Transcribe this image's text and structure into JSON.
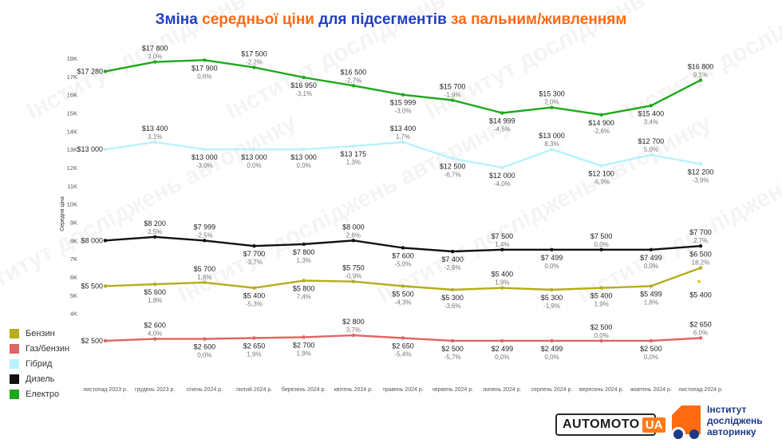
{
  "title": {
    "parts": [
      {
        "text": "Зміна ",
        "color": "#1f3fbf"
      },
      {
        "text": "середньої ціни",
        "color": "#ff6a13"
      },
      {
        "text": " для підсегментів ",
        "color": "#1f3fbf"
      },
      {
        "text": "за пальним/живленням",
        "color": "#ff6a13"
      }
    ]
  },
  "watermark": "Інститут досліджень авторинку",
  "logos": {
    "automoto_main": "AUTOMOTO",
    "automoto_suffix": "UA",
    "institute_lines": [
      "Інститут",
      "досліджень",
      "авторинку"
    ]
  },
  "chart_data": {
    "type": "line",
    "ylabel": "Середня ціна",
    "ylim": [
      0,
      18000
    ],
    "yticks": [
      4000,
      5000,
      6000,
      7000,
      8000,
      9000,
      10000,
      11000,
      12000,
      13000,
      14000,
      15000,
      16000,
      17000,
      18000
    ],
    "ytick_labels": [
      "4K",
      "5K",
      "6K",
      "7K",
      "8K",
      "9K",
      "10K",
      "11K",
      "12K",
      "13K",
      "14K",
      "15K",
      "16K",
      "17K",
      "18K"
    ],
    "categories": [
      "листопад 2023 р.",
      "грудень 2023 р.",
      "січень 2024 р.",
      "лютий 2024 р.",
      "березень 2024 р.",
      "квітень 2024 р.",
      "травень 2024 р.",
      "червень 2024 р.",
      "липень 2024 р.",
      "серпень 2024 р.",
      "вересень 2024 р.",
      "жовтень 2024 р.",
      "листопад 2024 р."
    ],
    "legend_position": "left",
    "series": [
      {
        "name": "Бензин",
        "color": "#b5ad1a",
        "values": [
          5500,
          5600,
          5700,
          5400,
          5800,
          5750,
          5500,
          5300,
          5400,
          5300,
          5400,
          5499,
          6500
        ],
        "value_labels": [
          "$5 500",
          "$5 600",
          "$5 700",
          "$5 400",
          "$5 800",
          "$5 750",
          "$5 500",
          "$5 300",
          "$5 400",
          "$5 300",
          "$5 400",
          "$5 499",
          "$6 500"
        ],
        "change_labels": [
          "",
          "1,8%",
          "1,8%",
          "-5,3%",
          "7,4%",
          "-0,9%",
          "-4,3%",
          "-3,6%",
          "1,9%",
          "-1,9%",
          "1,9%",
          "1,8%",
          "18,2%"
        ],
        "label_side": [
          "left",
          "below",
          "above",
          "below",
          "below",
          "above",
          "below",
          "below",
          "above",
          "below",
          "below",
          "below",
          "above"
        ]
      },
      {
        "name": "Газ/бензин",
        "color": "#e06464",
        "values": [
          2500,
          2600,
          2600,
          2650,
          2700,
          2800,
          2650,
          2500,
          2499,
          2499,
          2500,
          2500,
          2650
        ],
        "value_labels": [
          "$2 500",
          "$2 600",
          "$2 600",
          "$2 650",
          "$2 700",
          "$2 800",
          "$2 650",
          "$2 500",
          "$2 499",
          "$2 499",
          "$2 500",
          "$2 500",
          "$2 650"
        ],
        "change_labels": [
          "",
          "4,0%",
          "0,0%",
          "1,9%",
          "1,9%",
          "3,7%",
          "-5,4%",
          "-5,7%",
          "0,0%",
          "0,0%",
          "0,0%",
          "0,0%",
          "6,0%"
        ],
        "label_side": [
          "left",
          "above",
          "below",
          "below",
          "below",
          "above",
          "below",
          "below",
          "below",
          "below",
          "above",
          "below",
          "above"
        ]
      },
      {
        "name": "Гібрид",
        "color": "#b8f2fa",
        "values": [
          13000,
          13400,
          13000,
          13000,
          13000,
          13175,
          13400,
          12500,
          12000,
          13000,
          12100,
          12700,
          12200
        ],
        "value_labels": [
          "$13 000",
          "$13 400",
          "$13 000",
          "$13 000",
          "$13 000",
          "$13 175",
          "$13 400",
          "$12 500",
          "$12 000",
          "$13 000",
          "$12 100",
          "$12 700",
          "$12 200"
        ],
        "change_labels": [
          "",
          "3,1%",
          "-3,0%",
          "0,0%",
          "0,0%",
          "1,3%",
          "1,7%",
          "-6,7%",
          "-4,0%",
          "8,3%",
          "-6,9%",
          "5,0%",
          "-3,9%"
        ],
        "label_side": [
          "left",
          "above",
          "below",
          "below",
          "below",
          "below",
          "above",
          "below",
          "below",
          "above",
          "below",
          "above",
          "below"
        ]
      },
      {
        "name": "Дизель",
        "color": "#111111",
        "values": [
          8000,
          8200,
          7999,
          7700,
          7800,
          8000,
          7600,
          7400,
          7500,
          7499,
          7500,
          7499,
          7700
        ],
        "value_labels": [
          "$8 000",
          "$8 200",
          "$7 999",
          "$7 700",
          "$7 800",
          "$8 000",
          "$7 600",
          "$7 400",
          "$7 500",
          "$7 499",
          "$7 500",
          "$7 499",
          "$7 700"
        ],
        "change_labels": [
          "",
          "2,5%",
          "-2,5%",
          "-3,7%",
          "1,3%",
          "2,6%",
          "-5,0%",
          "-2,6%",
          "1,4%",
          "0,0%",
          "0,0%",
          "0,0%",
          "2,7%"
        ],
        "label_side": [
          "left",
          "above",
          "above",
          "below",
          "below",
          "above",
          "below",
          "below",
          "above",
          "below",
          "above",
          "below",
          "above"
        ]
      },
      {
        "name": "Електро",
        "color": "#1ea81e",
        "values": [
          17280,
          17800,
          17900,
          17500,
          16950,
          16500,
          15999,
          15700,
          14999,
          15300,
          14900,
          15400,
          16800
        ],
        "value_labels": [
          "$17 280",
          "$17 800",
          "$17 900",
          "$17 500",
          "$16 950",
          "$16 500",
          "$15 999",
          "$15 700",
          "$14 999",
          "$15 300",
          "$14 900",
          "$15 400",
          "$16 800"
        ],
        "change_labels": [
          "",
          "3,0%",
          "0,6%",
          "-2,2%",
          "-3,1%",
          "-2,7%",
          "-3,0%",
          "-1,9%",
          "-4,5%",
          "2,0%",
          "-2,6%",
          "3,4%",
          "9,1%"
        ],
        "label_side": [
          "left",
          "above",
          "below",
          "above",
          "below",
          "above",
          "below",
          "above",
          "below",
          "above",
          "below",
          "below",
          "above"
        ]
      }
    ],
    "annotations": [
      {
        "text": "$5 400",
        "x": "листопад 2024 р.",
        "y": 5400,
        "color": "#f0c419"
      }
    ]
  }
}
